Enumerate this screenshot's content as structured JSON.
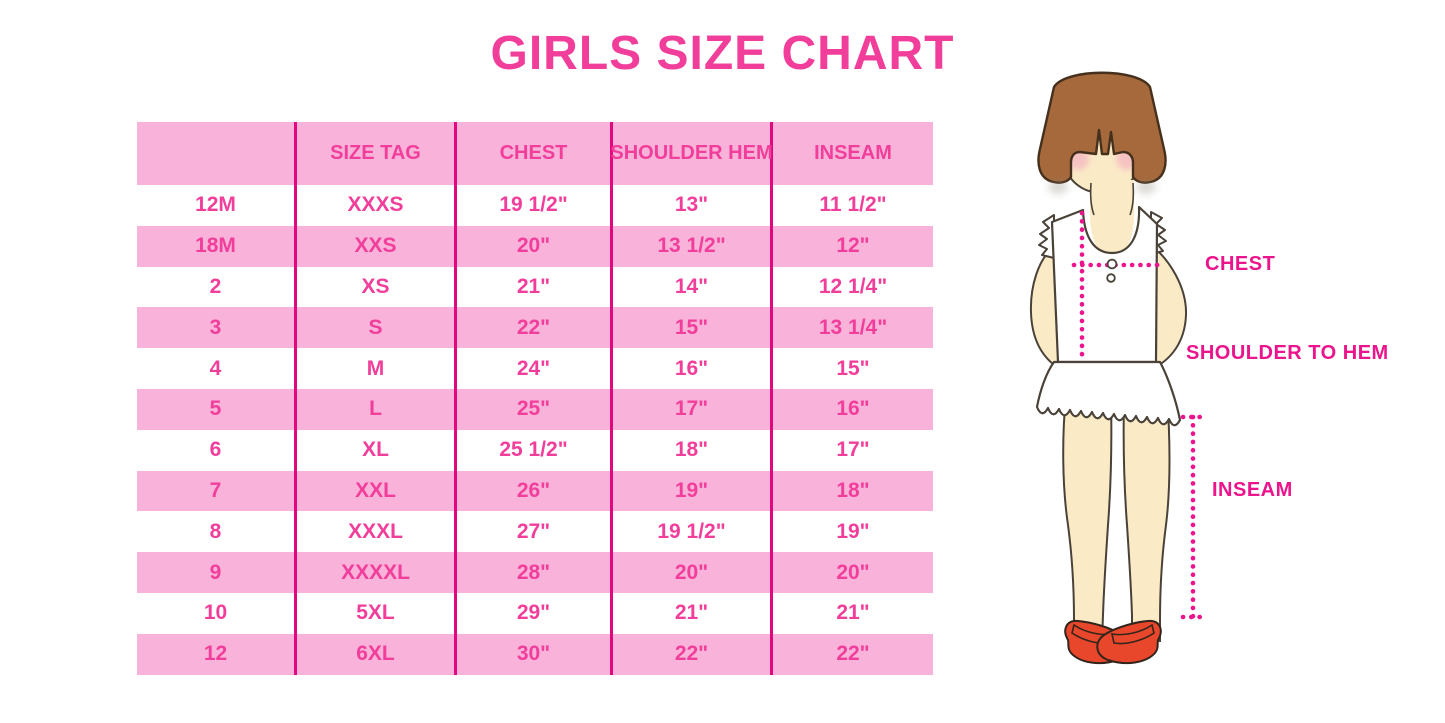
{
  "title": "GIRLS SIZE CHART",
  "chart_data": {
    "type": "table",
    "title": "GIRLS SIZE CHART",
    "columns": [
      "",
      "SIZE TAG",
      "CHEST",
      "SHOULDER HEM",
      "INSEAM"
    ],
    "rows": [
      [
        "12M",
        "XXXS",
        "19 1/2\"",
        "13\"",
        "11 1/2\""
      ],
      [
        "18M",
        "XXS",
        "20\"",
        "13 1/2\"",
        "12\""
      ],
      [
        "2",
        "XS",
        "21\"",
        "14\"",
        "12 1/4\""
      ],
      [
        "3",
        "S",
        "22\"",
        "15\"",
        "13 1/4\""
      ],
      [
        "4",
        "M",
        "24\"",
        "16\"",
        "15\""
      ],
      [
        "5",
        "L",
        "25\"",
        "17\"",
        "16\""
      ],
      [
        "6",
        "XL",
        "25 1/2\"",
        "18\"",
        "17\""
      ],
      [
        "7",
        "XXL",
        "26\"",
        "19\"",
        "18\""
      ],
      [
        "8",
        "XXXL",
        "27\"",
        "19 1/2\"",
        "19\""
      ],
      [
        "9",
        "XXXXL",
        "28\"",
        "20\"",
        "20\""
      ],
      [
        "10",
        "5XL",
        "29\"",
        "21\"",
        "21\""
      ],
      [
        "12",
        "6XL",
        "30\"",
        "22\"",
        "22\""
      ]
    ],
    "row_stripe_pattern": [
      "white",
      "pink",
      "white",
      "pink",
      "white",
      "pink",
      "white",
      "pink",
      "white",
      "pink",
      "white",
      "pink"
    ]
  },
  "figure": {
    "labels": {
      "chest": "CHEST",
      "shoulder_to_hem": "SHOULDER TO HEM",
      "inseam": "INSEAM"
    }
  },
  "colors": {
    "accent_text": "#f23e9b",
    "row_pink": "#f9b2d9",
    "grid_line": "#e3077f",
    "measure_magenta": "#ec148c",
    "hair_brown": "#a5693b",
    "skin": "#faeac6",
    "shoe_red": "#e9472b",
    "background": "#ffffff"
  }
}
